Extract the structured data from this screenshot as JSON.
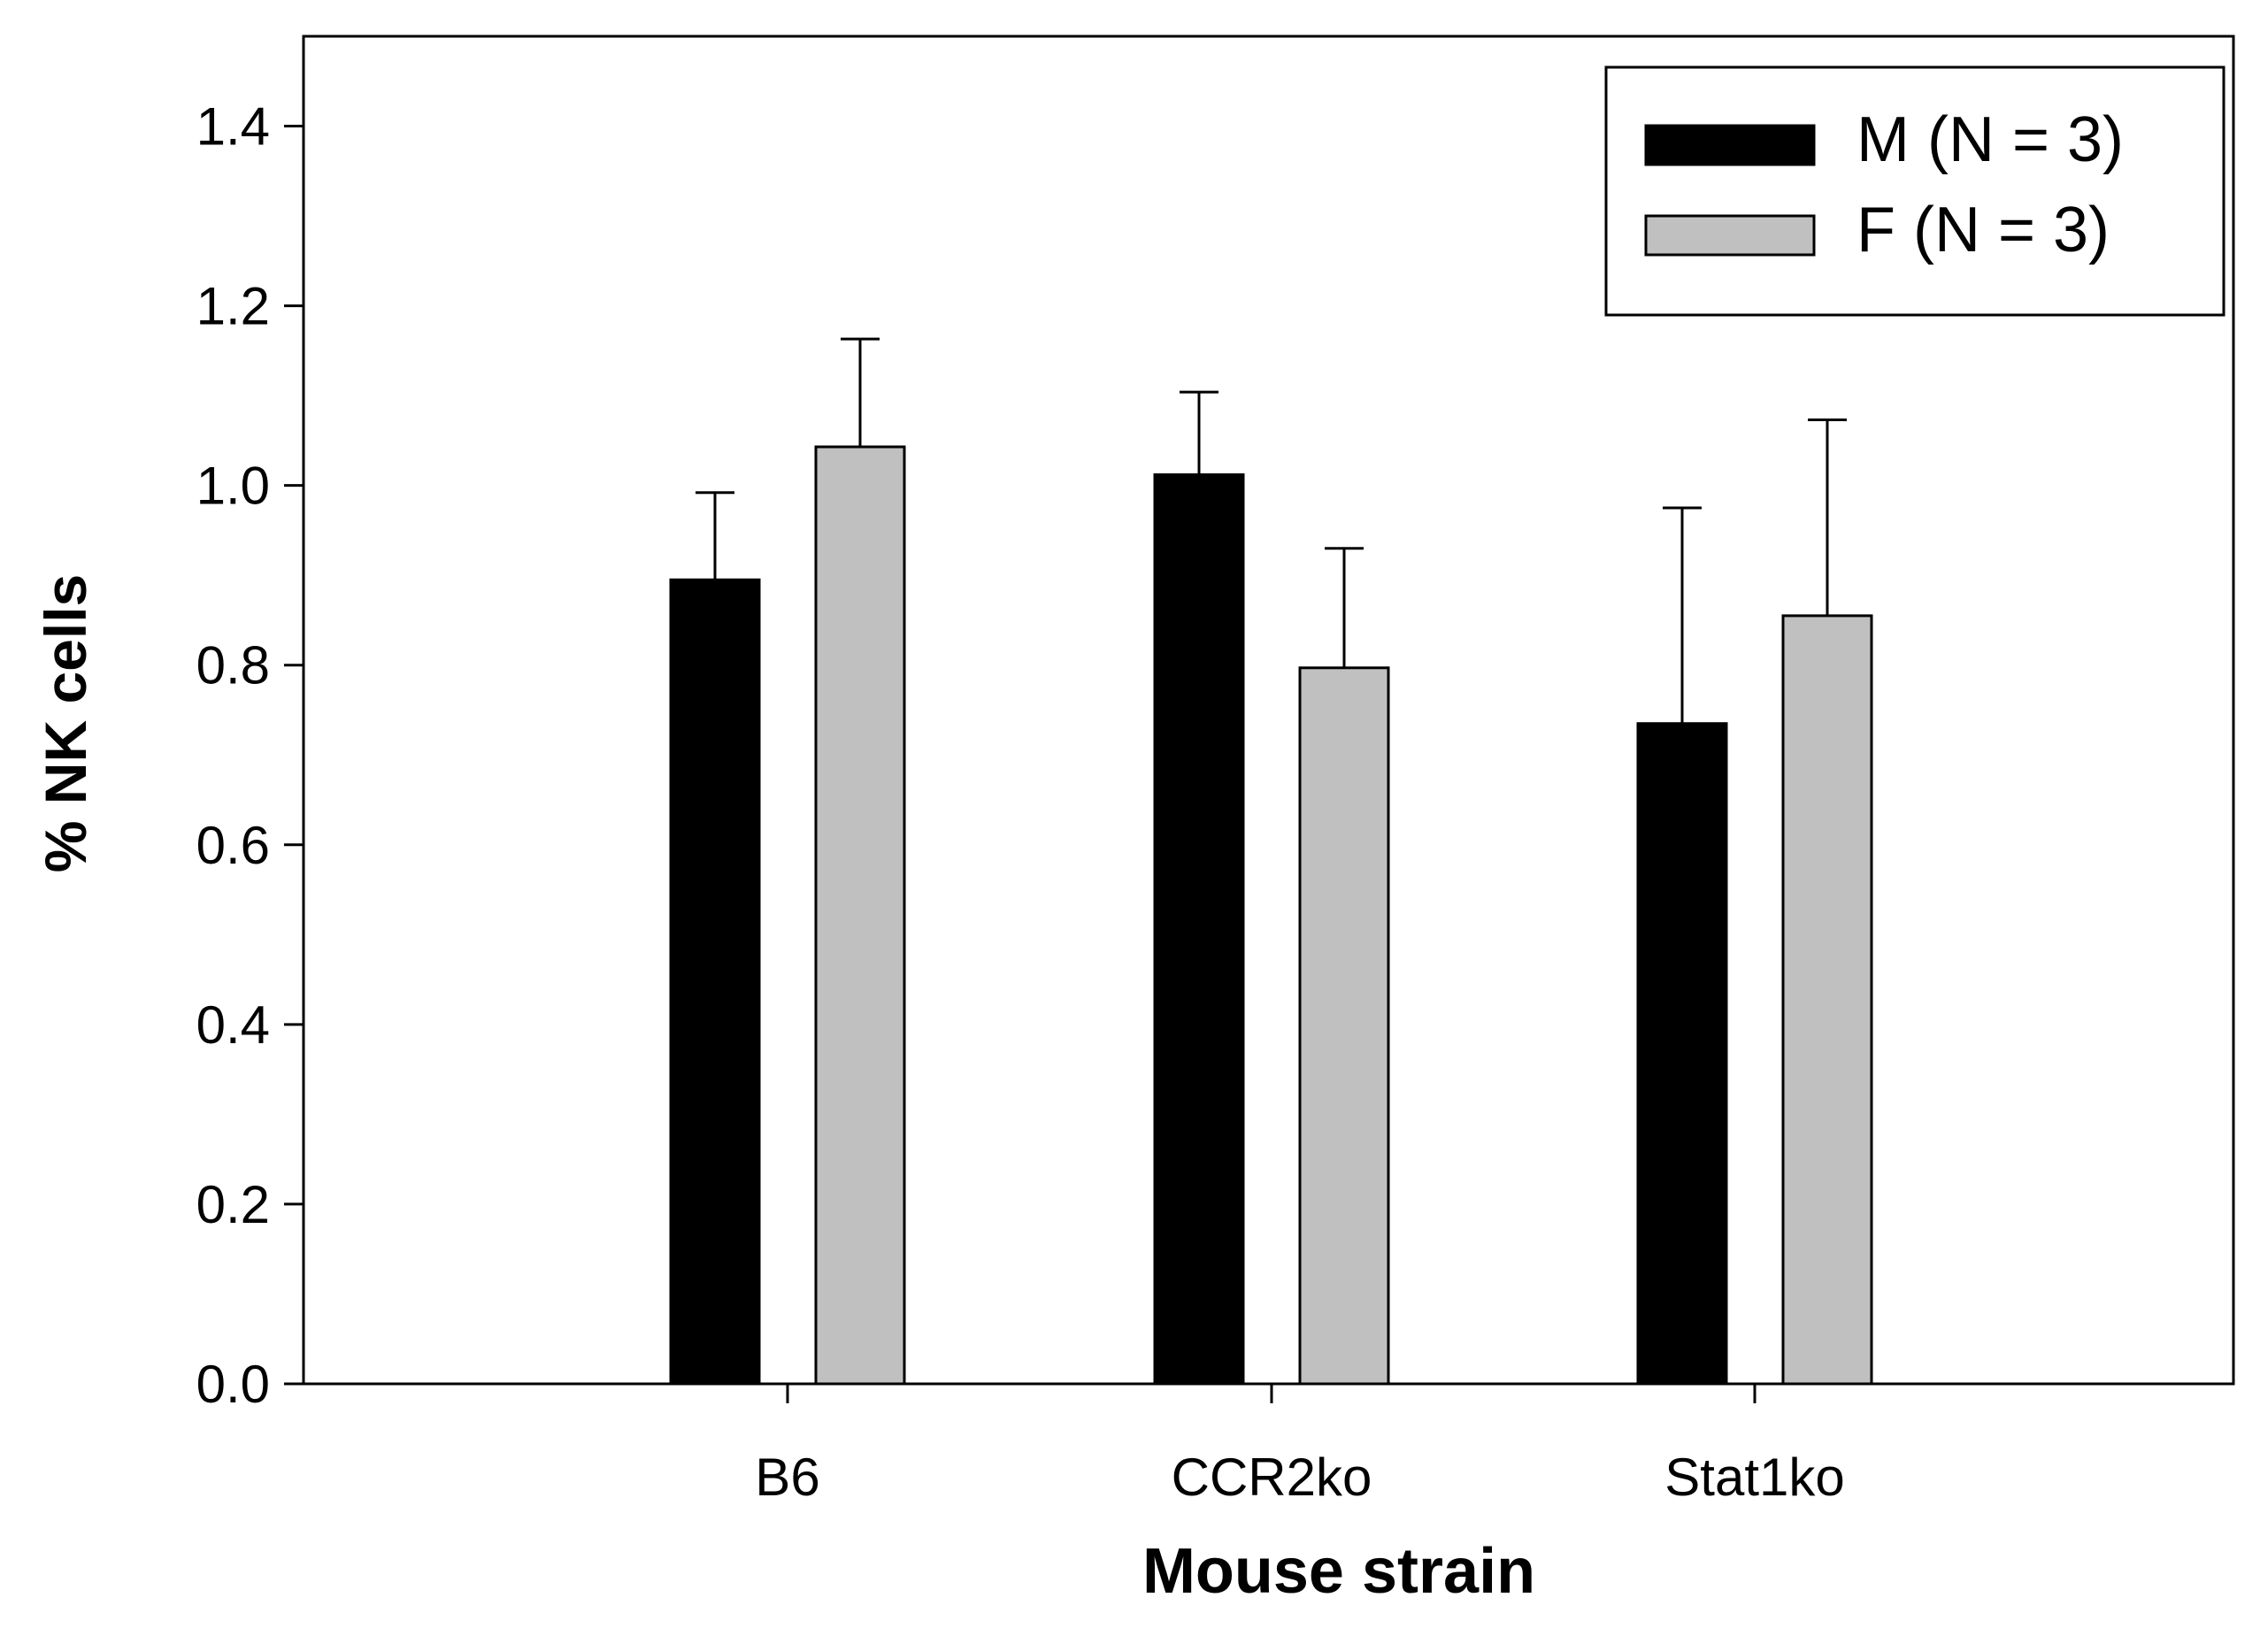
{
  "chart_data": {
    "type": "bar",
    "title": "",
    "xlabel": "Mouse strain",
    "ylabel": "% NK cells",
    "categories": [
      "B6",
      "CCR2ko",
      "Stat1ko"
    ],
    "series": [
      {
        "name": "M (N = 3)",
        "color": "#000000",
        "values": [
          0.895,
          1.012,
          0.735
        ],
        "errors": [
          0.097,
          0.092,
          0.24
        ]
      },
      {
        "name": "F (N = 3)",
        "color": "#c0c0c0",
        "values": [
          1.043,
          0.797,
          0.855
        ],
        "errors": [
          0.12,
          0.133,
          0.218
        ]
      }
    ],
    "ylim": [
      0,
      1.5
    ],
    "yticks": [
      "0.0",
      "0.2",
      "0.4",
      "0.6",
      "0.8",
      "1.0",
      "1.2",
      "1.4"
    ],
    "grid": false,
    "legend_position": "top-right"
  }
}
